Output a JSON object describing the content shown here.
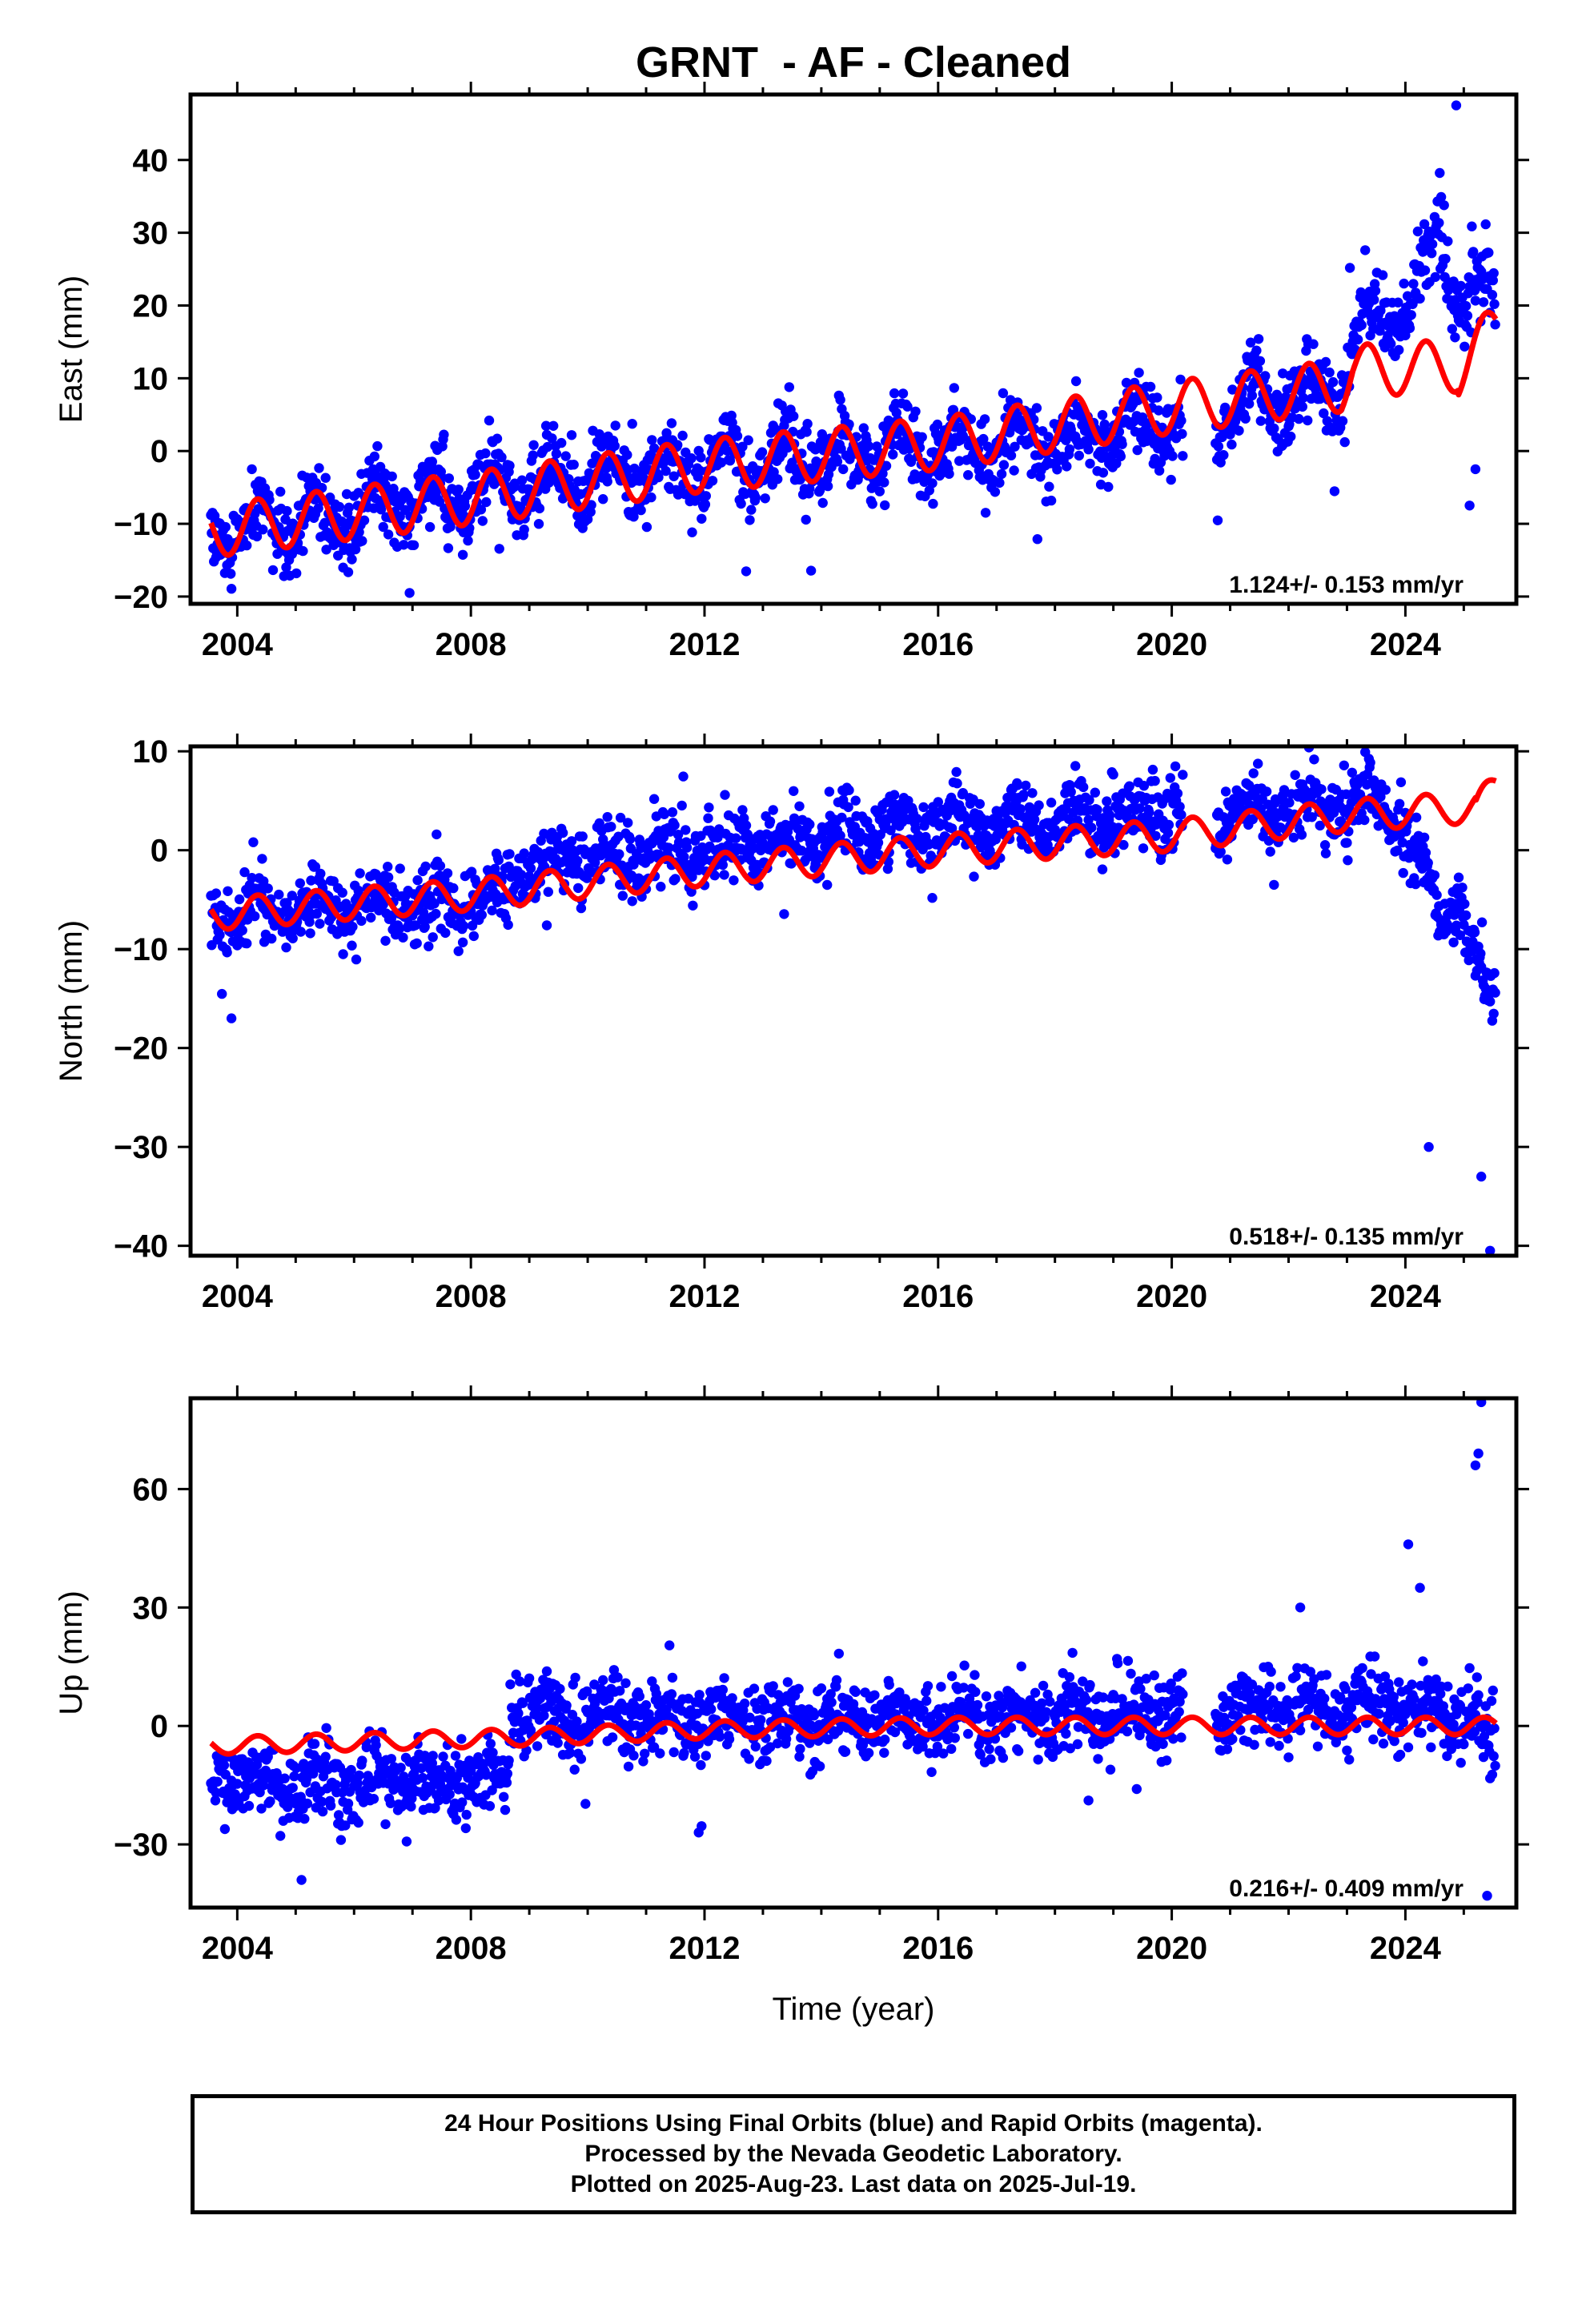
{
  "chart_data": {
    "type": "scatter",
    "title": "GRNT  - AF - Cleaned",
    "shared_x": {
      "xlabel_bottom_panel": "Time (year)",
      "xlim": [
        2003.2,
        2025.9
      ],
      "ticks": [
        2004,
        2008,
        2012,
        2016,
        2020,
        2024
      ],
      "tick_labels": [
        "2004",
        "2008",
        "2012",
        "2016",
        "2020",
        "2024"
      ],
      "data_span": [
        2003.55,
        2025.55
      ],
      "data_gap": [
        2020.2,
        2020.75
      ]
    },
    "panels": [
      {
        "name": "east",
        "ylabel": "East (mm)",
        "ylim": [
          -21,
          49
        ],
        "yticks": [
          -20,
          -10,
          0,
          10,
          20,
          30,
          40
        ],
        "ytick_labels": [
          "-20",
          "-10",
          "0",
          "10",
          "20",
          "30",
          "40"
        ],
        "rate_label": "1.124+/- 0.153 mm/yr",
        "series": [
          {
            "kind": "daily_positions_scatter",
            "color": "#0000ff",
            "approx_trend_mm": [
              [
                2003.55,
                -11
              ],
              [
                2008.0,
                -6
              ],
              [
                2012.0,
                -2
              ],
              [
                2016.0,
                0
              ],
              [
                2020.0,
                4
              ],
              [
                2022.9,
                9
              ],
              [
                2023.1,
                16
              ],
              [
                2024.0,
                20
              ],
              [
                2024.6,
                30
              ],
              [
                2024.9,
                23
              ],
              [
                2025.55,
                20
              ]
            ],
            "scatter_sd_mm": 2.6,
            "annual_amplitude_mm": 3.0,
            "outliers": [
              [
                2024.87,
                47.5
              ],
              [
                2025.1,
                -7.5
              ],
              [
                2025.2,
                -2.5
              ],
              [
                2006.95,
                -19.5
              ]
            ]
          },
          {
            "kind": "model_fit_line",
            "color": "#ff0000",
            "approx_trend_mm": [
              [
                2003.55,
                -11
              ],
              [
                2008.0,
                -6.5
              ],
              [
                2012.0,
                -2
              ],
              [
                2016.0,
                1
              ],
              [
                2020.0,
                6
              ],
              [
                2022.9,
                9
              ],
              [
                2023.1,
                11
              ],
              [
                2025.55,
                12
              ]
            ],
            "annual_amplitude_mm": 3.6,
            "end_rise": [
              [
                2024.9,
                11
              ],
              [
                2025.55,
                17
              ]
            ]
          }
        ]
      },
      {
        "name": "north",
        "ylabel": "North (mm)",
        "ylim": [
          -41,
          10.5
        ],
        "yticks": [
          -40,
          -30,
          -20,
          -10,
          0,
          10
        ],
        "ytick_labels": [
          "-40",
          "-30",
          "-20",
          "-10",
          "0",
          "10"
        ],
        "rate_label": "0.518+/- 0.135 mm/yr",
        "series": [
          {
            "kind": "daily_positions_scatter",
            "color": "#0000ff",
            "approx_trend_mm": [
              [
                2003.55,
                -6.5
              ],
              [
                2008.0,
                -5
              ],
              [
                2009.5,
                -1
              ],
              [
                2012.0,
                0
              ],
              [
                2016.0,
                2.5
              ],
              [
                2020.0,
                3.5
              ],
              [
                2023.5,
                5
              ],
              [
                2023.9,
                3
              ],
              [
                2024.3,
                -2
              ],
              [
                2024.6,
                -8
              ],
              [
                2024.9,
                -5
              ],
              [
                2025.55,
                -18
              ]
            ],
            "scatter_sd_mm": 1.8,
            "annual_amplitude_mm": 1.2,
            "outliers": [
              [
                2003.9,
                -17
              ],
              [
                2025.45,
                -40.5
              ],
              [
                2025.3,
                -33
              ],
              [
                2024.4,
                -30
              ],
              [
                2021.75,
                -3.5
              ]
            ]
          },
          {
            "kind": "model_fit_line",
            "color": "#ff0000",
            "approx_trend_mm": [
              [
                2003.55,
                -6.5
              ],
              [
                2008.0,
                -4.5
              ],
              [
                2012.0,
                -2
              ],
              [
                2016.0,
                0
              ],
              [
                2020.0,
                1.5
              ],
              [
                2023.0,
                3.5
              ],
              [
                2025.55,
                4.5
              ]
            ],
            "annual_amplitude_mm": 1.6,
            "end_rise": [
              [
                2025.2,
                4
              ],
              [
                2025.55,
                6.5
              ]
            ]
          }
        ]
      },
      {
        "name": "up",
        "ylabel": "Up (mm)",
        "ylim": [
          -46,
          83
        ],
        "yticks": [
          -30,
          0,
          30,
          60
        ],
        "ytick_labels": [
          "-30",
          "0",
          "30",
          "60"
        ],
        "rate_label": "0.216+/- 0.409 mm/yr",
        "series": [
          {
            "kind": "daily_positions_scatter",
            "color": "#0000ff",
            "approx_trend_mm": [
              [
                2003.55,
                -14
              ],
              [
                2008.6,
                -14
              ],
              [
                2008.7,
                3
              ],
              [
                2012.0,
                1
              ],
              [
                2016.0,
                2
              ],
              [
                2020.0,
                3
              ],
              [
                2023.0,
                5
              ],
              [
                2025.2,
                3
              ],
              [
                2025.55,
                -5
              ]
            ],
            "scatter_sd_mm": 4.8,
            "annual_amplitude_mm": 2.5,
            "outliers": [
              [
                2025.3,
                82
              ],
              [
                2025.25,
                69
              ],
              [
                2025.2,
                66
              ],
              [
                2024.05,
                46
              ],
              [
                2024.25,
                35
              ],
              [
                2025.4,
                -43
              ],
              [
                2005.1,
                -39
              ],
              [
                2022.2,
                30
              ],
              [
                2011.9,
                -27
              ]
            ]
          },
          {
            "kind": "model_fit_line",
            "color": "#ff0000",
            "approx_trend_mm": [
              [
                2003.55,
                -5
              ],
              [
                2008.6,
                -3
              ],
              [
                2012.0,
                -1
              ],
              [
                2016.0,
                0
              ],
              [
                2020.0,
                0
              ],
              [
                2025.55,
                0
              ]
            ],
            "annual_amplitude_mm": 2.2,
            "end_rise": []
          }
        ]
      }
    ]
  },
  "footer": {
    "lines": [
      "24 Hour Positions Using Final Orbits (blue) and Rapid Orbits (magenta).",
      "Processed by the Nevada Geodetic Laboratory.",
      "Plotted on 2025-Aug-23. Last data on 2025-Jul-19."
    ]
  }
}
